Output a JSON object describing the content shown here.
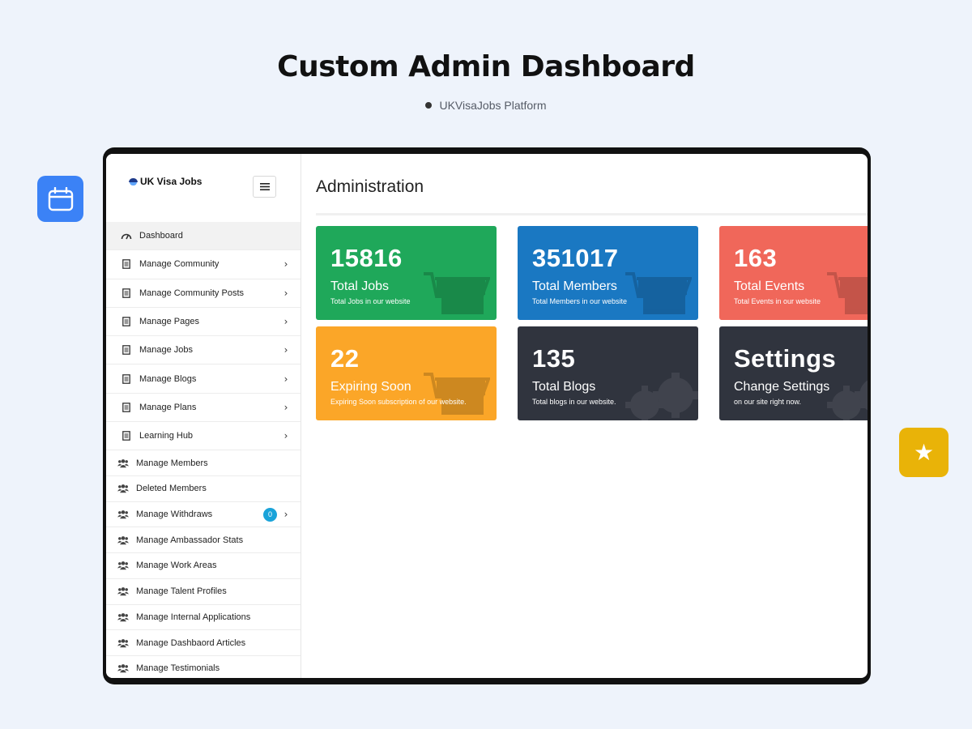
{
  "hero": {
    "title": "Custom Admin Dashboard",
    "subtitle": "UKVisaJobs Platform"
  },
  "decor": {
    "left_badge_icon": "calendar-icon",
    "right_badge_icon": "star-icon",
    "star_glyph": "★"
  },
  "brand": {
    "name": "UK Visa Jobs"
  },
  "main": {
    "title": "Administration"
  },
  "sidebar": {
    "items": [
      {
        "label": "Dashboard",
        "icon": "speedometer-icon",
        "chevron": false
      },
      {
        "label": "Manage Community",
        "icon": "document-icon",
        "chevron": true
      },
      {
        "label": "Manage Community Posts",
        "icon": "document-icon",
        "chevron": true
      },
      {
        "label": "Manage Pages",
        "icon": "document-icon",
        "chevron": true
      },
      {
        "label": "Manage Jobs",
        "icon": "document-icon",
        "chevron": true
      },
      {
        "label": "Manage Blogs",
        "icon": "document-icon",
        "chevron": true
      },
      {
        "label": "Manage Plans",
        "icon": "document-icon",
        "chevron": true
      },
      {
        "label": "Learning Hub",
        "icon": "document-icon",
        "chevron": true
      },
      {
        "label": "Manage Members",
        "icon": "users-icon",
        "chevron": false
      },
      {
        "label": "Deleted Members",
        "icon": "users-icon",
        "chevron": false
      },
      {
        "label": "Manage Withdraws",
        "icon": "users-icon",
        "chevron": true,
        "badge": "0"
      },
      {
        "label": "Manage Ambassador Stats",
        "icon": "users-icon",
        "chevron": false
      },
      {
        "label": "Manage Work Areas",
        "icon": "users-icon",
        "chevron": false
      },
      {
        "label": "Manage Talent Profiles",
        "icon": "users-icon",
        "chevron": false
      },
      {
        "label": "Manage Internal Applications",
        "icon": "users-icon",
        "chevron": false
      },
      {
        "label": "Manage Dashbaord Articles",
        "icon": "users-icon",
        "chevron": false
      },
      {
        "label": "Manage Testimonials",
        "icon": "users-icon",
        "chevron": false
      }
    ],
    "chevron_glyph": "›"
  },
  "cards": [
    {
      "value": "15816",
      "title": "Total Jobs",
      "desc": "Total Jobs in our website",
      "color": "#1fa85a",
      "icon": "cart-icon"
    },
    {
      "value": "351017",
      "title": "Total Members",
      "desc": "Total Members in our website",
      "color": "#1a78c2",
      "icon": "cart-icon"
    },
    {
      "value": "163",
      "title": "Total Events",
      "desc": "Total Events in our website",
      "color": "#f0675a",
      "icon": "cart-icon"
    },
    {
      "value": "22",
      "title": "Expiring Soon",
      "desc": "Expiring Soon subscription of our website.",
      "color": "#fba628",
      "icon": "cart-icon"
    },
    {
      "value": "135",
      "title": "Total Blogs",
      "desc": "Total blogs in our website.",
      "color": "#30343e",
      "icon": "gears-icon"
    },
    {
      "value": "Settings",
      "title": "Change Settings",
      "desc": "on our site right now.",
      "color": "#30343e",
      "icon": "gears-icon"
    }
  ]
}
